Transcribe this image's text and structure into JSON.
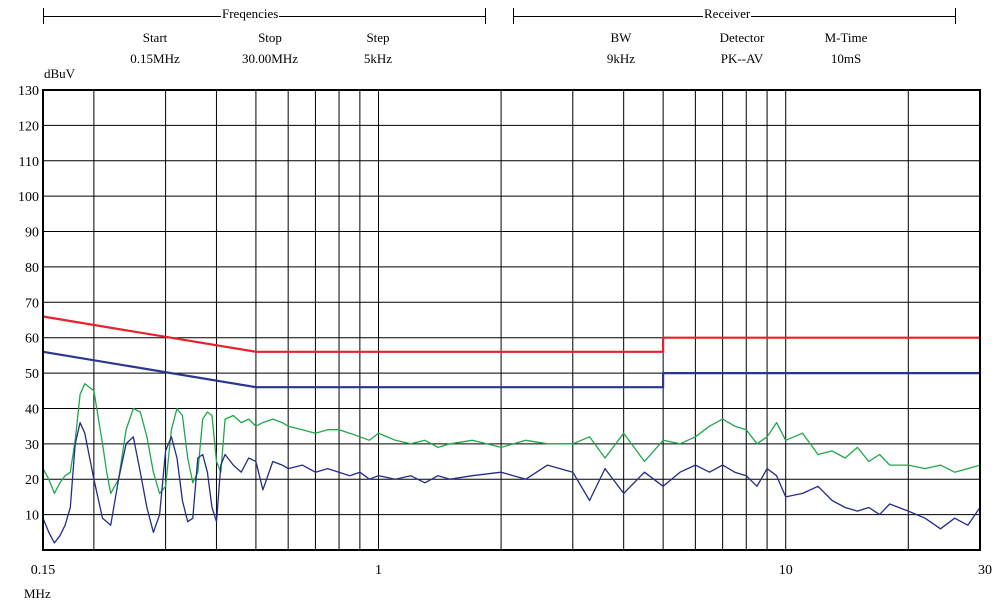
{
  "header": {
    "freq_group": "Freqencies",
    "receiver_group": "Receiver",
    "start_label": "Start",
    "start_value": "0.15MHz",
    "stop_label": "Stop",
    "stop_value": "30.00MHz",
    "step_label": "Step",
    "step_value": "5kHz",
    "bw_label": "BW",
    "bw_value": "9kHz",
    "detector_label": "Detector",
    "detector_value": "PK--AV",
    "mtime_label": "M-Time",
    "mtime_value": "10mS"
  },
  "chart_data": {
    "type": "line",
    "ylabel": "dBuV",
    "xlabel": "MHz",
    "x_scale": "log",
    "xlim": [
      0.15,
      30
    ],
    "ylim": [
      0,
      130
    ],
    "grid": true,
    "y_ticks": [
      "10",
      "20",
      "30",
      "40",
      "50",
      "60",
      "70",
      "80",
      "90",
      "100",
      "110",
      "120",
      "130"
    ],
    "x_ticks": [
      "0.15",
      "1",
      "10",
      "30"
    ],
    "colors": {
      "qp_limit": "#e8202a",
      "av_limit": "#2a3593",
      "peak": "#1fa84a",
      "average": "#232c8c",
      "grid": "#000000"
    },
    "series": [
      {
        "key": "qp_limit",
        "x": [
          0.15,
          0.5,
          0.5,
          5,
          5,
          30
        ],
        "y": [
          66,
          56,
          56,
          56,
          60,
          60
        ]
      },
      {
        "key": "av_limit",
        "x": [
          0.15,
          0.5,
          0.5,
          5,
          5,
          30
        ],
        "y": [
          56,
          46,
          46,
          46,
          50,
          50
        ]
      },
      {
        "key": "peak",
        "x": [
          0.15,
          0.155,
          0.16,
          0.165,
          0.17,
          0.175,
          0.18,
          0.185,
          0.19,
          0.2,
          0.21,
          0.215,
          0.22,
          0.23,
          0.24,
          0.25,
          0.26,
          0.27,
          0.28,
          0.29,
          0.3,
          0.31,
          0.32,
          0.33,
          0.34,
          0.35,
          0.36,
          0.37,
          0.38,
          0.39,
          0.4,
          0.41,
          0.42,
          0.44,
          0.46,
          0.48,
          0.5,
          0.52,
          0.55,
          0.58,
          0.6,
          0.65,
          0.7,
          0.75,
          0.8,
          0.85,
          0.9,
          0.95,
          1.0,
          1.1,
          1.2,
          1.3,
          1.4,
          1.5,
          1.7,
          2.0,
          2.3,
          2.6,
          3.0,
          3.3,
          3.6,
          4.0,
          4.5,
          5.0,
          5.5,
          6.0,
          6.5,
          7.0,
          7.5,
          8.0,
          8.5,
          9.0,
          9.5,
          10,
          11,
          12,
          13,
          14,
          15,
          16,
          17,
          18,
          20,
          22,
          24,
          26,
          28,
          30
        ],
        "y": [
          23,
          20,
          16,
          19,
          21,
          22,
          31,
          44,
          47,
          45,
          30,
          22,
          16,
          20,
          34,
          40,
          39,
          32,
          22,
          16,
          18,
          34,
          40,
          38,
          26,
          19,
          22,
          37,
          39,
          38,
          25,
          22,
          37,
          38,
          36,
          37,
          35,
          36,
          37,
          36,
          35,
          34,
          33,
          34,
          34,
          33,
          32,
          31,
          33,
          31,
          30,
          31,
          29,
          30,
          31,
          29,
          31,
          30,
          30,
          32,
          26,
          33,
          25,
          31,
          30,
          32,
          35,
          37,
          35,
          34,
          30,
          32,
          36,
          31,
          33,
          27,
          28,
          26,
          29,
          25,
          27,
          24,
          24,
          23,
          24,
          22,
          23,
          24
        ]
      },
      {
        "key": "average",
        "x": [
          0.15,
          0.155,
          0.16,
          0.165,
          0.17,
          0.175,
          0.18,
          0.185,
          0.19,
          0.2,
          0.21,
          0.215,
          0.22,
          0.23,
          0.24,
          0.25,
          0.26,
          0.27,
          0.28,
          0.29,
          0.3,
          0.31,
          0.32,
          0.33,
          0.34,
          0.35,
          0.36,
          0.37,
          0.38,
          0.39,
          0.4,
          0.41,
          0.42,
          0.44,
          0.46,
          0.48,
          0.5,
          0.52,
          0.55,
          0.58,
          0.6,
          0.65,
          0.7,
          0.75,
          0.8,
          0.85,
          0.9,
          0.95,
          1.0,
          1.1,
          1.2,
          1.3,
          1.4,
          1.5,
          1.7,
          2.0,
          2.3,
          2.6,
          3.0,
          3.3,
          3.6,
          4.0,
          4.5,
          5.0,
          5.5,
          6.0,
          6.5,
          7.0,
          7.5,
          8.0,
          8.5,
          9.0,
          9.5,
          10,
          11,
          12,
          13,
          14,
          15,
          16,
          17,
          18,
          20,
          22,
          24,
          26,
          28,
          30
        ],
        "y": [
          9,
          5,
          2,
          4,
          7,
          12,
          30,
          36,
          33,
          20,
          9,
          8,
          7,
          20,
          30,
          32,
          22,
          12,
          5,
          10,
          28,
          32,
          26,
          14,
          8,
          9,
          26,
          27,
          22,
          12,
          8,
          24,
          27,
          24,
          22,
          26,
          25,
          17,
          25,
          24,
          23,
          24,
          22,
          23,
          22,
          21,
          22,
          20,
          21,
          20,
          21,
          19,
          21,
          20,
          21,
          22,
          20,
          24,
          22,
          14,
          23,
          16,
          22,
          18,
          22,
          24,
          22,
          24,
          22,
          21,
          18,
          23,
          21,
          15,
          16,
          18,
          14,
          12,
          11,
          12,
          10,
          13,
          11,
          9,
          6,
          9,
          7,
          12
        ]
      }
    ]
  }
}
